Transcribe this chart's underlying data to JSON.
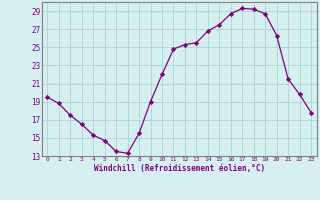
{
  "x": [
    0,
    1,
    2,
    3,
    4,
    5,
    6,
    7,
    8,
    9,
    10,
    11,
    12,
    13,
    14,
    15,
    16,
    17,
    18,
    19,
    20,
    21,
    22,
    23
  ],
  "y": [
    19.5,
    18.8,
    17.5,
    16.5,
    15.3,
    14.7,
    13.5,
    13.3,
    15.5,
    19.0,
    22.0,
    24.8,
    25.3,
    25.5,
    26.8,
    27.5,
    28.7,
    29.3,
    29.2,
    28.7,
    26.3,
    21.5,
    19.8,
    17.8
  ],
  "line_color": "#800080",
  "marker": "D",
  "marker_size": 2.2,
  "bg_color": "#d6f0f0",
  "grid_color": "#aad4d4",
  "xlabel": "Windchill (Refroidissement éolien,°C)",
  "xlabel_color": "#800080",
  "tick_color": "#800080",
  "spine_color": "#808080",
  "ylim": [
    13,
    30
  ],
  "yticks": [
    13,
    15,
    17,
    19,
    21,
    23,
    25,
    27,
    29
  ],
  "xlim": [
    -0.5,
    23.5
  ],
  "xticks": [
    0,
    1,
    2,
    3,
    4,
    5,
    6,
    7,
    8,
    9,
    10,
    11,
    12,
    13,
    14,
    15,
    16,
    17,
    18,
    19,
    20,
    21,
    22,
    23
  ]
}
